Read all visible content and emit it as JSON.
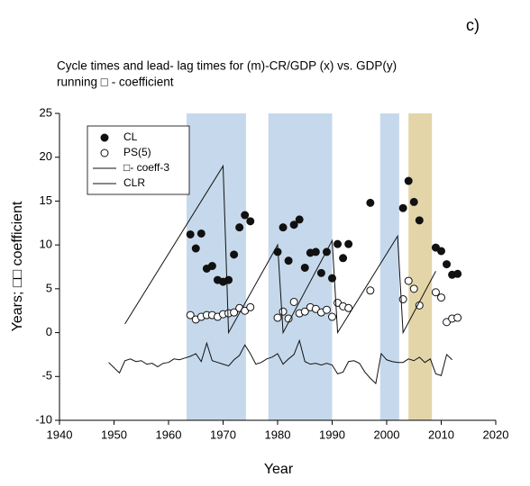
{
  "chart_data": {
    "type": "scatter",
    "panel_label": "c)",
    "title": "Cycle times and lead- lag times for (m)-CR/GDP (x) vs. GDP(y)",
    "subtitle": "running □ - coefficient",
    "x_label": "Year",
    "y_label": "Years; □□ coefficient",
    "xlim": [
      1940,
      2020
    ],
    "xticks": [
      1940,
      1950,
      1960,
      1970,
      1980,
      1990,
      2000,
      2010,
      2020
    ],
    "ylim": [
      -10,
      25
    ],
    "yticks": [
      -10,
      -5,
      0,
      5,
      10,
      15,
      20,
      25
    ],
    "legend": "upper left",
    "bands": [
      {
        "start": 1963.3,
        "end": 1974.2,
        "color": "#c6d9ec"
      },
      {
        "start": 1978.3,
        "end": 1990,
        "color": "#c6d9ec"
      },
      {
        "start": 1998.8,
        "end": 2002.3,
        "color": "#c6d9ec"
      },
      {
        "start": 2004,
        "end": 2008.3,
        "color": "#e3d5a8"
      }
    ],
    "series": [
      {
        "name": "CL",
        "mode": "markers",
        "marker": "filled",
        "color": "#111111",
        "x": [
          1964,
          1965,
          1966,
          1967,
          1968,
          1969,
          1970,
          1971,
          1972,
          1973,
          1974,
          1975,
          1980,
          1981,
          1982,
          1983,
          1984,
          1985,
          1986,
          1987,
          1988,
          1989,
          1990,
          1991,
          1992,
          1993,
          1997,
          2003,
          2004,
          2005,
          2006,
          2009,
          2010,
          2011,
          2012,
          2013
        ],
        "y": [
          11.2,
          9.6,
          11.3,
          7.3,
          7.6,
          6.0,
          5.8,
          6.0,
          8.9,
          12.0,
          13.4,
          12.7,
          9.2,
          12.0,
          8.2,
          12.3,
          12.9,
          7.4,
          9.1,
          9.2,
          6.8,
          9.2,
          6.2,
          10.1,
          8.5,
          10.1,
          14.8,
          14.2,
          17.3,
          14.9,
          12.8,
          9.7,
          9.3,
          7.8,
          6.6,
          6.7
        ]
      },
      {
        "name": "PS(5)",
        "mode": "markers",
        "marker": "open",
        "color": "#111111",
        "x": [
          1964,
          1965,
          1966,
          1967,
          1968,
          1969,
          1970,
          1971,
          1972,
          1973,
          1974,
          1975,
          1980,
          1981,
          1982,
          1983,
          1984,
          1985,
          1986,
          1987,
          1988,
          1989,
          1990,
          1991,
          1992,
          1993,
          1997,
          2003,
          2004,
          2005,
          2006,
          2009,
          2010,
          2011,
          2012,
          2013
        ],
        "y": [
          2.0,
          1.5,
          1.8,
          2.0,
          2.0,
          1.8,
          2.1,
          2.2,
          2.3,
          2.8,
          2.5,
          2.9,
          1.7,
          2.4,
          1.6,
          3.5,
          2.2,
          2.4,
          2.9,
          2.7,
          2.3,
          2.6,
          1.8,
          3.4,
          3.0,
          2.8,
          4.8,
          3.8,
          5.9,
          5.0,
          3.1,
          4.6,
          4.0,
          1.2,
          1.6,
          1.7
        ]
      },
      {
        "name": "□- coeff-3",
        "mode": "line",
        "color": "#111111",
        "x": [
          1952,
          1970,
          1971,
          1980,
          1981,
          1990,
          1991,
          2002,
          2003,
          2009
        ],
        "y": [
          1,
          19,
          0,
          10,
          0,
          10.5,
          0,
          11,
          0,
          7
        ]
      },
      {
        "name": "CLR",
        "mode": "line",
        "color": "#111111",
        "x": [
          1949,
          1950,
          1951,
          1952,
          1953,
          1954,
          1955,
          1956,
          1957,
          1958,
          1959,
          1960,
          1961,
          1962,
          1963,
          1964,
          1965,
          1966,
          1967,
          1968,
          1969,
          1970,
          1971,
          1972,
          1973,
          1974,
          1975,
          1976,
          1977,
          1978,
          1979,
          1980,
          1981,
          1982,
          1983,
          1984,
          1985,
          1986,
          1987,
          1988,
          1989,
          1990,
          1991,
          1992,
          1993,
          1994,
          1995,
          1996,
          1997,
          1998,
          1999,
          2000,
          2001,
          2002,
          2003,
          2004,
          2005,
          2006,
          2007,
          2008,
          2009,
          2010,
          2011,
          2012
        ],
        "y": [
          -3.4,
          -4,
          -4.6,
          -3.2,
          -3,
          -3.3,
          -3.2,
          -3.6,
          -3.5,
          -3.9,
          -3.5,
          -3.4,
          -3,
          -3.1,
          -2.9,
          -2.7,
          -2.4,
          -3.3,
          -1.2,
          -3.2,
          -3.4,
          -3.6,
          -3.8,
          -3.1,
          -2.6,
          -1.4,
          -2.4,
          -3.6,
          -3.4,
          -3,
          -2.8,
          -2.4,
          -3.6,
          -3,
          -2.5,
          -0.9,
          -3.3,
          -3.6,
          -3.5,
          -3.7,
          -3.5,
          -3.7,
          -4.7,
          -4.5,
          -3.3,
          -3.2,
          -3.5,
          -4.5,
          -5.2,
          -5.8,
          -2.4,
          -3.1,
          -3.3,
          -3.4,
          -3.4,
          -3,
          -3.2,
          -2.8,
          -3.4,
          -3,
          -4.7,
          -4.9,
          -2.5,
          -3.1
        ]
      }
    ]
  }
}
